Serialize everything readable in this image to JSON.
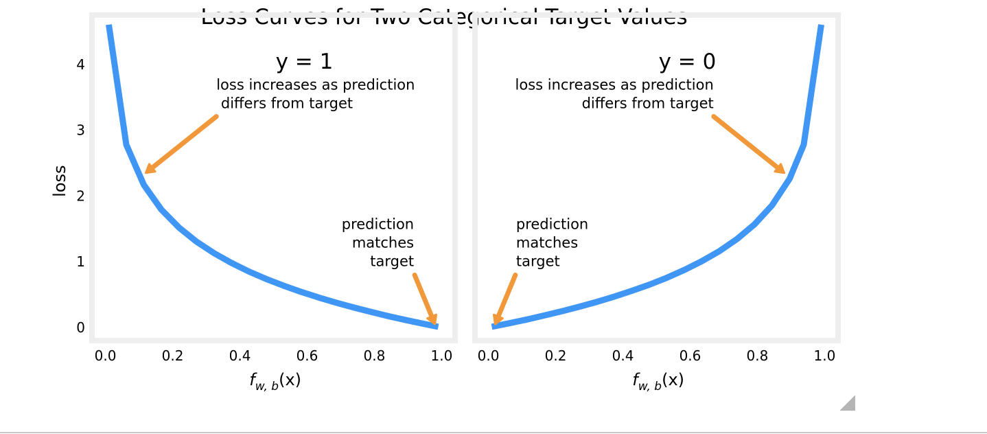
{
  "figure": {
    "suptitle": "Loss Curves for Two Categorical Target Values"
  },
  "colors": {
    "curve": "#4096f5",
    "annotation": "#f0983a",
    "frame": "#eeeeee",
    "text": "#000000"
  },
  "chart_data": [
    {
      "type": "line",
      "panel_title": "y = 1",
      "xlabel": "f_{w,b}(x)",
      "xlabel_parts": {
        "base": "f",
        "subscript": "w, b",
        "suffix": "(x)"
      },
      "ylabel": "loss",
      "xlim": [
        -0.04,
        1.04
      ],
      "ylim": [
        -0.2,
        4.75
      ],
      "xticks": [
        0.0,
        0.2,
        0.4,
        0.6,
        0.8,
        1.0
      ],
      "xtick_labels": [
        "0.0",
        "0.2",
        "0.4",
        "0.6",
        "0.8",
        "1.0"
      ],
      "yticks": [
        0,
        1,
        2,
        3,
        4
      ],
      "ytick_labels": [
        "0",
        "1",
        "2",
        "3",
        "4"
      ],
      "grid": false,
      "series": [
        {
          "formula": "-log(x)",
          "x": [
            0.01,
            0.0621,
            0.1142,
            0.1663,
            0.2184,
            0.2705,
            0.3226,
            0.3747,
            0.4268,
            0.4789,
            0.5311,
            0.5832,
            0.6353,
            0.6874,
            0.7395,
            0.7916,
            0.8437,
            0.8958,
            0.9479,
            0.99
          ],
          "y": [
            4.605,
            2.779,
            2.17,
            1.794,
            1.521,
            1.307,
            1.131,
            0.982,
            0.851,
            0.736,
            0.633,
            0.539,
            0.454,
            0.375,
            0.302,
            0.234,
            0.17,
            0.11,
            0.054,
            0.01
          ]
        }
      ],
      "annotations": [
        {
          "text": "loss increases as prediction\n differs from target",
          "xy": [
            0.12,
            2.35
          ],
          "xytext": [
            0.33,
            3.25
          ],
          "align": "left"
        },
        {
          "text": "prediction\nmatches\ntarget",
          "xy": [
            0.98,
            0.05
          ],
          "xytext": [
            0.93,
            0.85
          ],
          "align": "right"
        }
      ]
    },
    {
      "type": "line",
      "panel_title": "y = 0",
      "xlabel": "f_{w,b}(x)",
      "xlabel_parts": {
        "base": "f",
        "subscript": "w, b",
        "suffix": "(x)"
      },
      "xlim": [
        -0.04,
        1.04
      ],
      "ylim": [
        -0.2,
        4.75
      ],
      "xticks": [
        0.0,
        0.2,
        0.4,
        0.6,
        0.8,
        1.0
      ],
      "xtick_labels": [
        "0.0",
        "0.2",
        "0.4",
        "0.6",
        "0.8",
        "1.0"
      ],
      "yticks": [
        0,
        1,
        2,
        3,
        4
      ],
      "grid": false,
      "series": [
        {
          "formula": "-log(1-x)",
          "x": [
            0.01,
            0.0621,
            0.1142,
            0.1663,
            0.2184,
            0.2705,
            0.3226,
            0.3747,
            0.4268,
            0.4789,
            0.5311,
            0.5832,
            0.6353,
            0.6874,
            0.7395,
            0.7916,
            0.8437,
            0.8958,
            0.9379,
            0.99
          ],
          "y": [
            0.01,
            0.064,
            0.121,
            0.182,
            0.247,
            0.316,
            0.389,
            0.469,
            0.557,
            0.651,
            0.757,
            0.876,
            1.009,
            1.162,
            1.345,
            1.568,
            1.857,
            2.261,
            2.779,
            4.605
          ]
        }
      ],
      "annotations": [
        {
          "text": "loss increases as prediction\ndiffers from target",
          "xy": [
            0.88,
            2.35
          ],
          "xytext": [
            0.67,
            3.25
          ],
          "align": "right"
        },
        {
          "text": "prediction\nmatches\ntarget",
          "xy": [
            0.02,
            0.05
          ],
          "xytext": [
            0.07,
            0.85
          ],
          "align": "left"
        }
      ]
    }
  ]
}
